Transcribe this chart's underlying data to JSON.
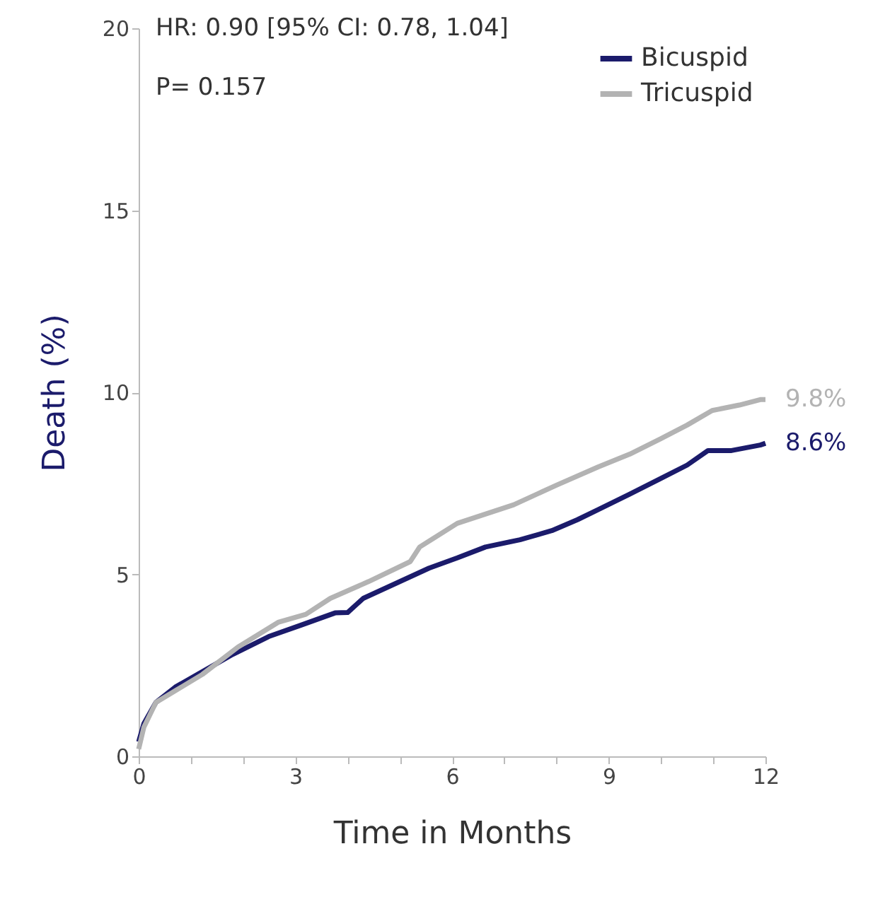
{
  "chart_data": {
    "type": "line",
    "xlabel": "Time in Months",
    "ylabel": "Death (%)",
    "xlim": [
      0,
      12
    ],
    "xticks": [
      0,
      {
        "value": 1,
        "label": null
      },
      {
        "value": 2,
        "label": null
      },
      3,
      {
        "value": 4,
        "label": null
      },
      {
        "value": 5,
        "label": null
      },
      6,
      {
        "value": 7,
        "label": null
      },
      {
        "value": 8,
        "label": null
      },
      9,
      {
        "value": 10,
        "label": null
      },
      {
        "value": 11,
        "label": null
      },
      12
    ],
    "ylim": [
      0,
      20
    ],
    "yticks": [
      0,
      5,
      10,
      15,
      20
    ],
    "grid": false,
    "legend": "top right",
    "series": [
      {
        "name": "Bicuspid",
        "color": "#1b1b6b",
        "x": [
          0,
          0.1,
          0.33,
          0.7,
          1.14,
          1.8,
          2.49,
          3.1,
          3.76,
          4.0,
          4.3,
          5.0,
          5.56,
          6.1,
          6.64,
          7.3,
          7.91,
          8.4,
          8.8,
          9.4,
          9.99,
          10.5,
          10.9,
          11.35,
          11.9,
          12
        ],
        "values": [
          0.4,
          0.9,
          1.48,
          1.9,
          2.26,
          2.8,
          3.29,
          3.6,
          3.94,
          3.95,
          4.34,
          4.8,
          5.17,
          5.45,
          5.75,
          5.95,
          6.2,
          6.5,
          6.78,
          7.2,
          7.63,
          8.0,
          8.4,
          8.4,
          8.55,
          8.6
        ]
      },
      {
        "name": "Tricuspid",
        "color": "#b3b3b3",
        "x": [
          0,
          0.1,
          0.33,
          0.7,
          1.22,
          1.9,
          2.67,
          3.2,
          3.67,
          4.4,
          5.2,
          5.38,
          6.1,
          7.18,
          8.0,
          8.8,
          9.4,
          9.99,
          10.5,
          10.98,
          11.5,
          11.9,
          12
        ],
        "values": [
          0.2,
          0.8,
          1.48,
          1.8,
          2.25,
          3.0,
          3.68,
          3.9,
          4.34,
          4.8,
          5.35,
          5.75,
          6.4,
          6.91,
          7.45,
          7.95,
          8.3,
          8.72,
          9.1,
          9.5,
          9.65,
          9.8,
          9.8
        ]
      }
    ],
    "annotations": [
      "HR: 0.90 [95% CI: 0.78, 1.04]",
      "P= 0.157",
      {
        "text": "9.8%",
        "x": 12,
        "y": 9.8
      },
      {
        "text": "8.6%",
        "x": 12,
        "y": 8.6
      }
    ]
  }
}
